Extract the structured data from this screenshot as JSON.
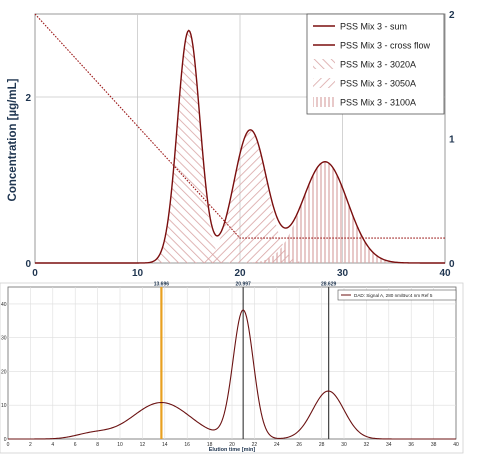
{
  "chart_data": [
    {
      "type": "line",
      "ylabel": "Concentration [µg/mL]",
      "xlim": [
        0,
        40
      ],
      "ylim": [
        0,
        3
      ],
      "y2lim": [
        0,
        2
      ],
      "x_ticks": [
        "0",
        "10",
        "20",
        "30",
        "40"
      ],
      "y_ticks": [
        {
          "v": 0,
          "label": "0"
        },
        {
          "v": 2,
          "label": "2"
        }
      ],
      "y2_ticks": [
        {
          "v": 0,
          "label": "0"
        },
        {
          "v": 1,
          "label": "1"
        },
        {
          "v": 2,
          "label": "2"
        }
      ],
      "grid": true,
      "legend_position": "top-right",
      "legend": [
        {
          "label": "PSS Mix 3 - sum",
          "style": "line"
        },
        {
          "label": "PSS Mix 3 - cross flow",
          "style": "line"
        },
        {
          "label": "PSS Mix 3 - 3020A",
          "style": "diag-right"
        },
        {
          "label": "PSS Mix 3 - 3050A",
          "style": "diag-left"
        },
        {
          "label": "PSS Mix 3 - 3100A",
          "style": "vertical"
        }
      ],
      "peaks": [
        {
          "name": "PSS Mix 3 - 3020A",
          "center": 15.0,
          "height": 2.8,
          "sigma": 1.1,
          "fill": "diag-right"
        },
        {
          "name": "PSS Mix 3 - 3050A",
          "center": 21.0,
          "height": 1.6,
          "sigma": 1.6,
          "fill": "diag-left"
        },
        {
          "name": "PSS Mix 3 - 3100A",
          "center": 28.3,
          "height": 1.22,
          "sigma": 2.2,
          "fill": "vertical"
        }
      ],
      "cross_flow": {
        "axis": "right",
        "x": [
          0,
          20,
          20.2,
          40
        ],
        "y": [
          2.0,
          0.2,
          0.2,
          0.2
        ]
      },
      "colors": {
        "sum": "#7a0e0e",
        "hatch": "#d9a5a5",
        "cross_flow": "#9c1a1a",
        "axis_label": "#1f3550"
      }
    },
    {
      "type": "line",
      "xlabel": "Elution time [min]",
      "xlim": [
        0,
        40
      ],
      "ylim": [
        0,
        45
      ],
      "x_ticks": [
        "0",
        "2",
        "4",
        "6",
        "8",
        "10",
        "12",
        "14",
        "16",
        "18",
        "20",
        "22",
        "24",
        "26",
        "28",
        "30",
        "32",
        "34",
        "36",
        "38",
        "40"
      ],
      "y_ticks": [
        {
          "v": 0,
          "label": "0"
        },
        {
          "v": 10,
          "label": "10"
        },
        {
          "v": 20,
          "label": "20"
        },
        {
          "v": 30,
          "label": "30"
        },
        {
          "v": 40,
          "label": "40"
        }
      ],
      "legend_position": "top-right",
      "legend": [
        {
          "label": "DAD: Signal A, 280 nm/Bw:4 nm Ref 5",
          "style": "line"
        }
      ],
      "markers": [
        {
          "x": 13.696,
          "label": "13.696",
          "color": "#e8a020"
        },
        {
          "x": 20.997,
          "label": "20.997",
          "color": "#444444"
        },
        {
          "x": 28.629,
          "label": "28.629",
          "color": "#444444"
        }
      ],
      "peaks": [
        {
          "center": 13.7,
          "height": 10.8,
          "sigma": 2.6
        },
        {
          "center": 21.0,
          "height": 38.0,
          "sigma": 0.9
        },
        {
          "center": 28.6,
          "height": 14.2,
          "sigma": 1.4
        },
        {
          "center": 7.5,
          "height": 1.5,
          "sigma": 1.5
        }
      ],
      "colors": {
        "signal": "#6b1212"
      }
    }
  ]
}
